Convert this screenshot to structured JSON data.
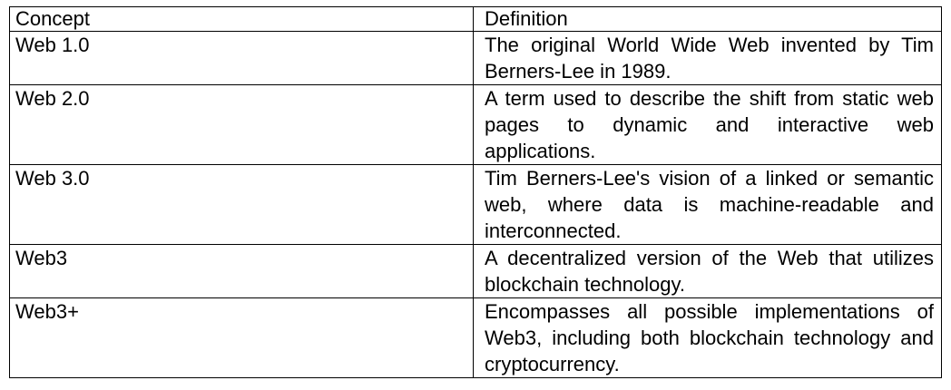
{
  "table": {
    "headers": {
      "concept": "Concept",
      "definition": "Definition"
    },
    "rows": [
      {
        "concept": "Web 1.0",
        "definition": "The original World Wide Web invented by Tim Berners-Lee in 1989."
      },
      {
        "concept": "Web 2.0",
        "definition": "A term used to describe the shift from static web pages to dynamic and interactive web applications."
      },
      {
        "concept": "Web 3.0",
        "definition": "Tim Berners-Lee's vision of a linked or semantic web, where data is machine-readable and interconnected."
      },
      {
        "concept": "Web3",
        "definition": "A decentralized version of the Web that utilizes blockchain technology."
      },
      {
        "concept": "Web3+",
        "definition": "Encompasses all possible implementations of Web3, including both blockchain technology and cryptocurrency."
      }
    ]
  }
}
